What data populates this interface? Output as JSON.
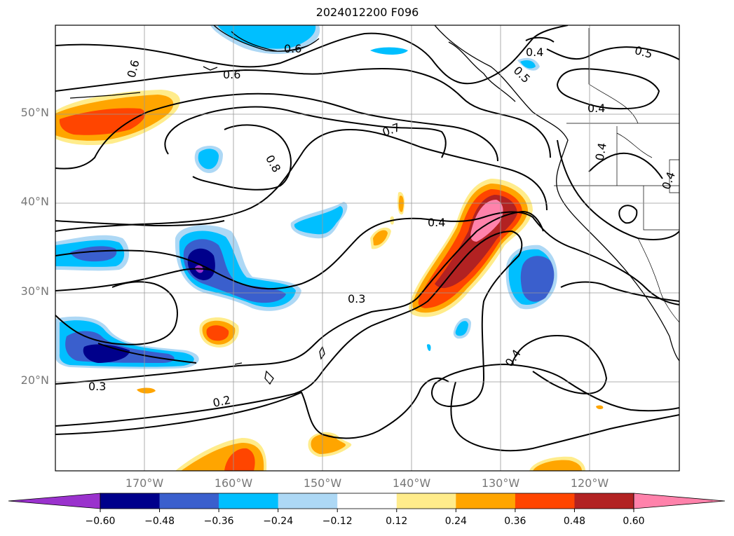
{
  "title": "2024012200 F096",
  "lat_labels": [
    "50°N",
    "40°N",
    "30°N",
    "20°N"
  ],
  "lon_labels": [
    "170°W",
    "160°W",
    "150°W",
    "140°W",
    "130°W",
    "120°W"
  ],
  "contour_labels": [
    "0.6",
    "0.6",
    "0.6",
    "0.7",
    "0.8",
    "0.4",
    "0.5",
    "0.5",
    "0.4",
    "0.4",
    "0.4",
    "0.4",
    "0.3",
    "0.4",
    "0.3",
    "0.2"
  ],
  "colorbar": {
    "ticks": [
      "−0.60",
      "−0.48",
      "−0.36",
      "−0.24",
      "−0.12",
      "0.12",
      "0.24",
      "0.36",
      "0.48",
      "0.60"
    ],
    "colors": [
      "#9a32cd",
      "#00008b",
      "#3a5fcd",
      "#00bfff",
      "#add8f5",
      "#ffffff",
      "#ffec8b",
      "#ffa500",
      "#ff4500",
      "#b22222",
      "#ff82ab",
      "#ff82ab"
    ]
  }
}
